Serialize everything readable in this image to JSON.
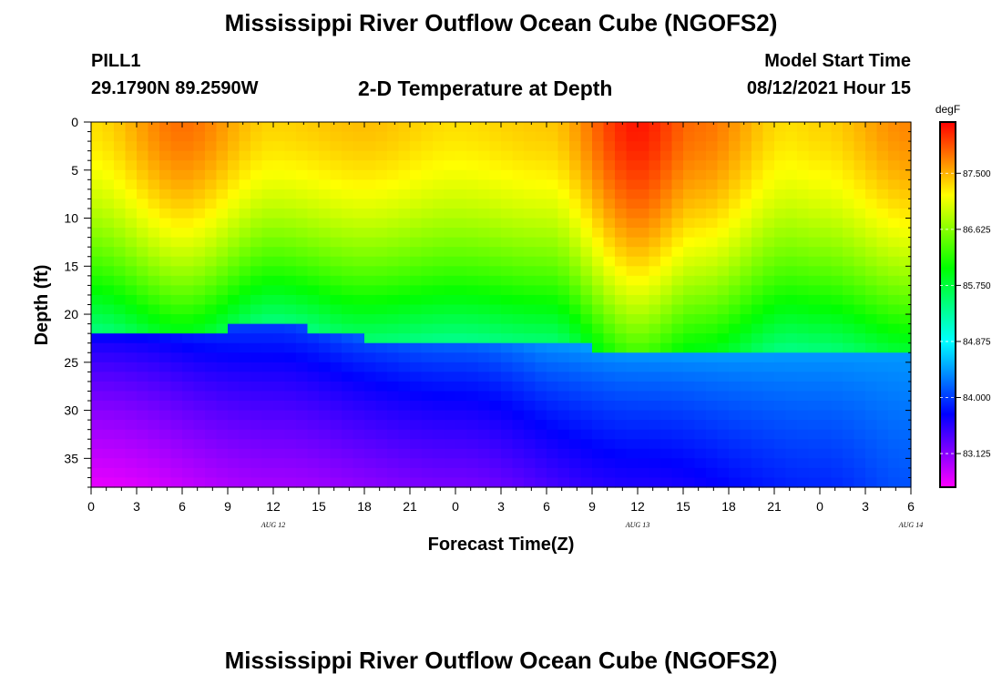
{
  "header": {
    "title": "Mississippi River Outflow Ocean Cube (NGOFS2)",
    "station": "PILL1",
    "coords": "29.1790N  89.2590W",
    "subtitle": "2-D Temperature at Depth",
    "model_start_label": "Model Start Time",
    "model_start_value": "08/12/2021 Hour 15"
  },
  "footer": {
    "title": "Mississippi River Outflow Ocean Cube (NGOFS2)"
  },
  "chart_data": {
    "type": "heatmap",
    "title": "2-D Temperature at Depth",
    "xlabel": "Forecast Time(Z)",
    "ylabel": "Depth (ft)",
    "x_tick_labels": [
      "0",
      "3",
      "6",
      "9",
      "12",
      "15",
      "18",
      "21",
      "0",
      "3",
      "6",
      "9",
      "12",
      "15",
      "18",
      "21",
      "0",
      "3",
      "6"
    ],
    "x_date_labels": [
      {
        "text": "AUG  12",
        "hour": 12
      },
      {
        "text": "AUG  13",
        "hour": 36
      },
      {
        "text": "AUG  14",
        "hour": 54
      }
    ],
    "xlim": [
      0,
      54
    ],
    "y_ticks": [
      0,
      5,
      10,
      15,
      20,
      25,
      30,
      35
    ],
    "ylim": [
      0,
      38
    ],
    "y_inverted": true,
    "colorbar": {
      "unit": "degF",
      "min": 82.6,
      "max": 88.3,
      "ticks": [
        "87.500",
        "86.625",
        "85.750",
        "84.875",
        "84.000",
        "83.125"
      ],
      "tick_values": [
        87.5,
        86.625,
        85.75,
        84.875,
        84.0,
        83.125
      ]
    },
    "surface_temperature_anchors": {
      "hours": [
        0,
        6,
        12,
        18,
        24,
        30,
        36,
        40,
        46,
        48,
        54
      ],
      "values_degF": [
        87.3,
        87.8,
        87.35,
        87.45,
        87.3,
        87.4,
        88.2,
        87.8,
        87.3,
        87.35,
        87.7
      ]
    },
    "thermocline_depth_anchors": {
      "hours": [
        0,
        6,
        12,
        18,
        24,
        30,
        36,
        42,
        48,
        54
      ],
      "depth_ft": [
        22.3,
        22.0,
        21.0,
        22.5,
        22.8,
        23.0,
        24.0,
        24.2,
        24.0,
        23.8
      ]
    },
    "bottom_temperature_anchors": {
      "hours": [
        0,
        12,
        24,
        36,
        48,
        54
      ],
      "values_degF": [
        82.7,
        83.0,
        83.2,
        83.6,
        83.9,
        84.1
      ]
    }
  }
}
